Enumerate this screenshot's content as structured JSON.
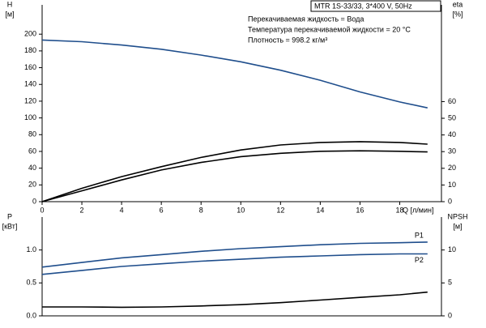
{
  "chart_data": [
    {
      "type": "line",
      "annotation_title": "MTR 1S-33/33, 3*400 V, 50Hz",
      "annotations": [
        "Перекачиваемая жидкость = Вода",
        "Температура перекачиваемой жидкости = 20 °C",
        "Плотность = 998.2 кг/м³"
      ],
      "y_label": [
        "H",
        "[м]"
      ],
      "y2_label": [
        "eta",
        "[%]"
      ],
      "x_label": "Q [л/мин]",
      "x": [
        0,
        2,
        4,
        6,
        8,
        10,
        12,
        14,
        16,
        18,
        19.4
      ],
      "xlim": [
        0,
        20.1
      ],
      "xticks": [
        0,
        2,
        4,
        6,
        8,
        10,
        12,
        14,
        16,
        18
      ],
      "ylim": [
        0,
        235
      ],
      "yticks": [
        0,
        20,
        40,
        60,
        80,
        100,
        120,
        140,
        160,
        180,
        200
      ],
      "y2lim": [
        0,
        118
      ],
      "y2ticks": [
        0,
        10,
        20,
        30,
        40,
        50,
        60
      ],
      "series": [
        {
          "color": "#1f4e8c",
          "values": [
            193,
            191,
            187,
            182,
            175,
            167,
            157,
            145,
            131,
            119,
            112
          ]
        },
        {
          "color": "#000000",
          "axis": "y2",
          "values": [
            0,
            8,
            15,
            21,
            26.5,
            31,
            34,
            35.5,
            36,
            35.5,
            34.5
          ]
        },
        {
          "color": "#000000",
          "axis": "y2",
          "values": [
            0,
            6.5,
            13,
            19,
            23.5,
            27,
            29,
            30.2,
            30.5,
            30.2,
            29.8
          ]
        }
      ]
    },
    {
      "type": "line",
      "y_label": [
        "P",
        "[кВт]"
      ],
      "y2_label": [
        "NPSH",
        "[м]"
      ],
      "x": [
        0,
        2,
        4,
        6,
        8,
        10,
        12,
        14,
        16,
        18,
        19.4
      ],
      "xlim": [
        0,
        20.1
      ],
      "ylim": [
        0,
        1.5
      ],
      "yticks": [
        {
          "value": 0,
          "label": "0.0"
        },
        0.5,
        {
          "value": 1,
          "label": "1.0"
        }
      ],
      "y2lim": [
        0,
        15
      ],
      "y2ticks": [
        0,
        5,
        10
      ],
      "series": [
        {
          "name": "P1",
          "color": "#1f4e8c",
          "values": [
            0.74,
            0.81,
            0.88,
            0.93,
            0.98,
            1.02,
            1.05,
            1.08,
            1.1,
            1.11,
            1.12
          ]
        },
        {
          "name": "P2",
          "color": "#1f4e8c",
          "values": [
            0.63,
            0.69,
            0.75,
            0.79,
            0.83,
            0.86,
            0.89,
            0.91,
            0.93,
            0.94,
            0.94
          ]
        },
        {
          "color": "#000000",
          "axis": "y2",
          "values": [
            1.35,
            1.35,
            1.3,
            1.35,
            1.5,
            1.7,
            2.0,
            2.4,
            2.8,
            3.2,
            3.6
          ]
        }
      ]
    }
  ]
}
